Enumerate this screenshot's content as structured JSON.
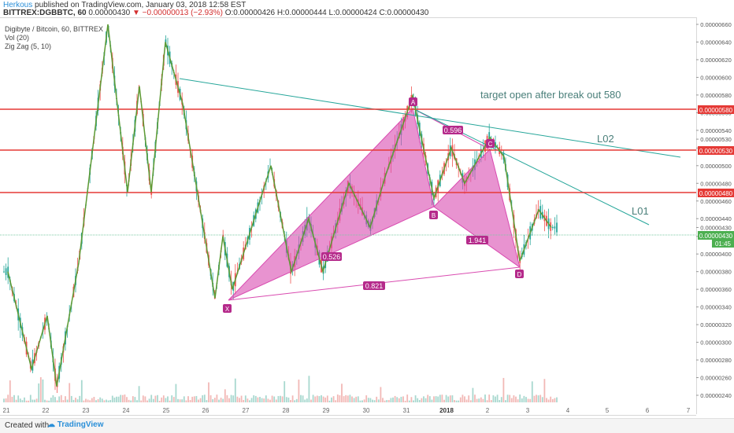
{
  "header": {
    "author": "Herkous",
    "published": "published on TradingView.com, January 03, 2018 12:58 EST",
    "symbol": "BITTREX:DGBBTC, 60",
    "ohlc_open": "0.00000430",
    "change": "▼ −0.00000013 (−2.93%)",
    "ohlc_detail": "O:0.00000426 H:0.00000444 L:0.00000424 C:0.00000430"
  },
  "legend": {
    "title": "Digibyte / Bitcoin, 60, BITTREX",
    "vol": "Vol (20)",
    "zigzag": "Zig Zag (5, 10)"
  },
  "annotations": {
    "target": "target open after break out 580",
    "l02": "L02",
    "l01": "L01",
    "ratio_ac": "0.596",
    "ratio_bd": "1.941",
    "ratio_xb": "0.526",
    "ratio_xd": "0.821",
    "pt_x": "X",
    "pt_a": "A",
    "pt_b": "B",
    "pt_c": "C",
    "pt_d": "D"
  },
  "price_axis": {
    "ticks": [
      "0.00000660",
      "0.00000640",
      "0.00000620",
      "0.00000600",
      "0.00000580",
      "0.00000560",
      "0.00000540",
      "0.00000530",
      "0.00000520",
      "0.00000500",
      "0.00000480",
      "0.00000460",
      "0.00000440",
      "0.00000430",
      "0.00000420",
      "0.00000400",
      "0.00000380",
      "0.00000360",
      "0.00000340",
      "0.00000320",
      "0.00000300",
      "0.00000280",
      "0.00000260",
      "0.00000240"
    ],
    "highlight_580": "0.00000580",
    "highlight_530": "0.00000530",
    "highlight_480": "0.00000480",
    "last_price": "0.00000430",
    "countdown": "01:45"
  },
  "time_axis": {
    "labels": [
      "21",
      "22",
      "23",
      "24",
      "25",
      "26",
      "27",
      "28",
      "29",
      "30",
      "31",
      "2018",
      "2",
      "3",
      "4",
      "5",
      "6",
      "7"
    ]
  },
  "colors": {
    "resistance": "#e53935",
    "zigzag": "#4caf50",
    "pattern": "#d94bb0",
    "trendline": "#26a69a",
    "up": "#26a69a",
    "down": "#ef5350"
  },
  "footer": {
    "created": "Created with",
    "brand": "TradingView"
  },
  "chart_data": {
    "type": "line",
    "horizontal_levels": [
      5.8e-06,
      5.3e-06,
      4.8e-06
    ],
    "harmonic_points": [
      {
        "label": "X",
        "price": 3.52e-06
      },
      {
        "label": "A",
        "price": 5.79e-06
      },
      {
        "label": "B",
        "price": 4.63e-06
      },
      {
        "label": "C",
        "price": 5.32e-06
      },
      {
        "label": "D",
        "price": 3.92e-06
      }
    ],
    "zigzag_prices": [
      3.8e-06,
      2.7e-06,
      3.3e-06,
      2.5e-06,
      3.9e-06,
      6.6e-06,
      4.7e-06,
      5.9e-06,
      4.7e-06,
      6.4e-06,
      5.7e-06,
      3.5e-06,
      4.2e-06,
      3.6e-06,
      5e-06,
      3.8e-06,
      4.4e-06,
      3.8e-06,
      4.8e-06,
      4.3e-06,
      4.9e-06,
      5.79e-06,
      4.63e-06,
      5.2e-06,
      4.8e-06,
      5.32e-06,
      5.1e-06,
      3.92e-06,
      4.5e-06,
      4.3e-06
    ],
    "last_price": 4.3e-06
  }
}
